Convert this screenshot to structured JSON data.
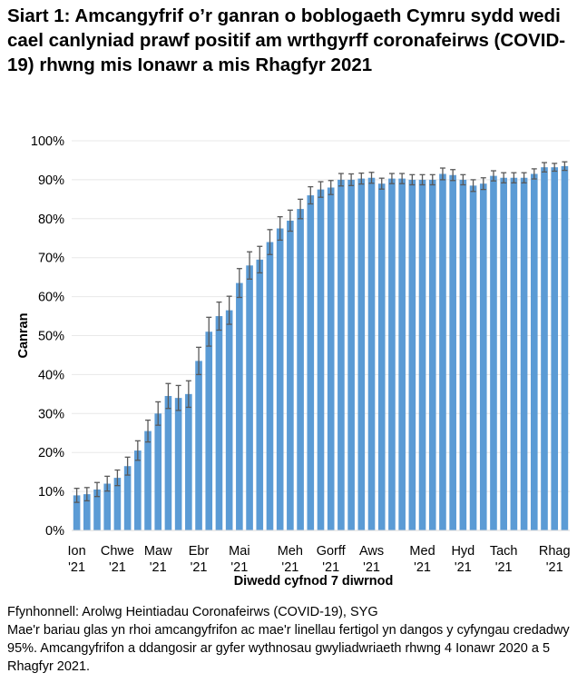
{
  "chart_data": {
    "type": "bar",
    "title": "Siart 1: Amcangyfrif o’r ganran o boblogaeth Cymru sydd wedi cael canlyniad prawf positif am wrthgyrff coronafeirws (COVID-19) rhwng mis Ionawr a mis Rhagfyr 2021",
    "xlabel": "Diwedd cyfnod 7 diwrnod",
    "ylabel": "Canran",
    "ylim": [
      0,
      100
    ],
    "yticks": [
      "0%",
      "10%",
      "20%",
      "30%",
      "40%",
      "50%",
      "60%",
      "70%",
      "80%",
      "90%",
      "100%"
    ],
    "grid": true,
    "xtick_labels": [
      {
        "bar": 0,
        "line1": "Ion",
        "line2": "'21"
      },
      {
        "bar": 4,
        "line1": "Chwe",
        "line2": "'21"
      },
      {
        "bar": 8,
        "line1": "Maw",
        "line2": "'21"
      },
      {
        "bar": 12,
        "line1": "Ebr",
        "line2": "'21"
      },
      {
        "bar": 16,
        "line1": "Mai",
        "line2": "'21"
      },
      {
        "bar": 21,
        "line1": "Meh",
        "line2": "'21"
      },
      {
        "bar": 25,
        "line1": "Gorff",
        "line2": "'21"
      },
      {
        "bar": 29,
        "line1": "Aws",
        "line2": "'21"
      },
      {
        "bar": 34,
        "line1": "Med",
        "line2": "'21"
      },
      {
        "bar": 38,
        "line1": "Hyd",
        "line2": "'21"
      },
      {
        "bar": 42,
        "line1": "Tach",
        "line2": "'21"
      },
      {
        "bar": 47,
        "line1": "Rhag",
        "line2": "'21"
      }
    ],
    "values": [
      9,
      9.3,
      10.5,
      12,
      13.5,
      16.5,
      20.5,
      25.5,
      30,
      34.5,
      34,
      35,
      43.5,
      51,
      55,
      56.5,
      63.5,
      68,
      69.5,
      74,
      77.5,
      79.5,
      82.5,
      86,
      87.5,
      88,
      90,
      90,
      90.3,
      90.5,
      89,
      90.3,
      90.3,
      90,
      90,
      90,
      91.5,
      91.2,
      90,
      88.5,
      89,
      91,
      90.5,
      90.5,
      90.5,
      91.5,
      93.2,
      93.2,
      93.5
    ],
    "ci_halfwidth": [
      1.8,
      1.7,
      1.8,
      1.9,
      2,
      2.3,
      2.5,
      2.8,
      3,
      3.2,
      3.2,
      3.4,
      3.5,
      3.7,
      3.6,
      3.6,
      3.7,
      3.5,
      3.4,
      3.2,
      3,
      2.7,
      2.5,
      2.2,
      2,
      1.8,
      1.6,
      1.5,
      1.4,
      1.4,
      1.4,
      1.3,
      1.3,
      1.3,
      1.3,
      1.3,
      1.5,
      1.4,
      1.3,
      1.5,
      1.5,
      1.3,
      1.3,
      1.3,
      1.3,
      1.3,
      1.2,
      1,
      1.1
    ],
    "bar_color": "#5b9bd5",
    "errorbar_color": "#595959"
  },
  "footnotes": {
    "source": "Ffynhonnell: Arolwg Heintiadau Coronafeirws (COVID-19), SYG",
    "note": "Mae'r bariau glas yn rhoi amcangyfrifon ac mae'r linellau fertigol yn dangos y cyfyngau credadwy 95%. Amcangyfrifon a ddangosir ar gyfer wythnosau gwyliadwriaeth rhwng 4 Ionawr 2020 a 5 Rhagfyr 2021."
  }
}
